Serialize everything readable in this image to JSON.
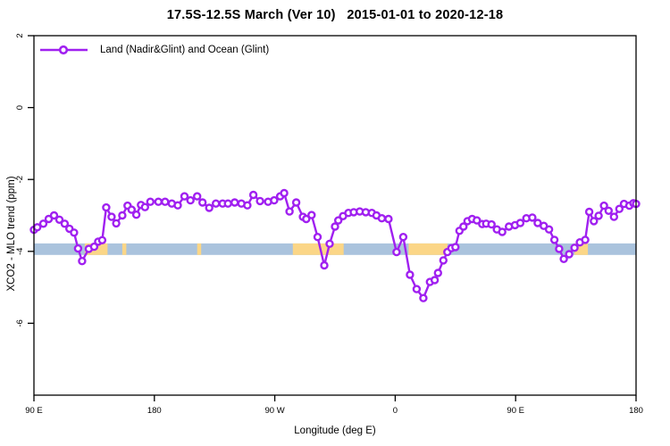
{
  "chart_data": {
    "type": "line",
    "title": "17.5S-12.5S March (Ver 10)   2015-01-01 to 2020-12-18",
    "xlabel": "Longitude (deg E)",
    "ylabel": "XCO2 - MLO trend (ppm)",
    "legend_label": "Land (Nadir&Glint) and Ocean (Glint)",
    "legend_position": "top-left",
    "grid": false,
    "x_axis_note": "longitude plotted eastward from 90E, wrapping past 180 and 0 back to 180 (450 deg span)",
    "xlim": [
      90,
      540
    ],
    "ylim": [
      -8,
      2
    ],
    "x_ticks": [
      {
        "pos": 90,
        "label": "90 E"
      },
      {
        "pos": 180,
        "label": "180"
      },
      {
        "pos": 270,
        "label": "90 W"
      },
      {
        "pos": 360,
        "label": "0"
      },
      {
        "pos": 450,
        "label": "90 E"
      },
      {
        "pos": 540,
        "label": "180"
      }
    ],
    "y_ticks": [
      {
        "pos": 2,
        "label": "2"
      },
      {
        "pos": 0,
        "label": "0"
      },
      {
        "pos": -2,
        "label": "-2"
      },
      {
        "pos": -4,
        "label": "-4"
      },
      {
        "pos": -6,
        "label": "-6"
      }
    ],
    "series_color": "#a020f0",
    "marker": "open-circle",
    "band": {
      "y_top": -3.78,
      "y_bottom": -4.1,
      "ocean_color": "#aac3dd",
      "land_color": "#fbd687",
      "land_segments_x": [
        [
          128,
          145
        ],
        [
          156,
          159
        ],
        [
          212,
          215
        ],
        [
          283.5,
          321.5
        ],
        [
          370,
          399
        ],
        [
          494,
          504
        ]
      ]
    },
    "points": [
      [
        90,
        -3.4
      ],
      [
        92.5,
        -3.33
      ],
      [
        97,
        -3.23
      ],
      [
        101,
        -3.1
      ],
      [
        105,
        -3.0
      ],
      [
        109,
        -3.12
      ],
      [
        113,
        -3.23
      ],
      [
        116.5,
        -3.37
      ],
      [
        120,
        -3.48
      ],
      [
        123,
        -3.92
      ],
      [
        126,
        -4.27
      ],
      [
        131,
        -3.93
      ],
      [
        135,
        -3.87
      ],
      [
        138,
        -3.73
      ],
      [
        141,
        -3.69
      ],
      [
        144,
        -2.78
      ],
      [
        148,
        -3.04
      ],
      [
        151.5,
        -3.22
      ],
      [
        156,
        -3.0
      ],
      [
        160,
        -2.73
      ],
      [
        163,
        -2.84
      ],
      [
        166.5,
        -2.98
      ],
      [
        170,
        -2.71
      ],
      [
        173,
        -2.77
      ],
      [
        177,
        -2.62
      ],
      [
        183,
        -2.62
      ],
      [
        188,
        -2.62
      ],
      [
        193,
        -2.67
      ],
      [
        197.5,
        -2.72
      ],
      [
        202.5,
        -2.47
      ],
      [
        207,
        -2.58
      ],
      [
        212,
        -2.47
      ],
      [
        216,
        -2.64
      ],
      [
        221,
        -2.79
      ],
      [
        226,
        -2.67
      ],
      [
        231,
        -2.67
      ],
      [
        235,
        -2.67
      ],
      [
        240,
        -2.64
      ],
      [
        245,
        -2.67
      ],
      [
        249.5,
        -2.72
      ],
      [
        254,
        -2.43
      ],
      [
        259,
        -2.6
      ],
      [
        265,
        -2.62
      ],
      [
        269.5,
        -2.58
      ],
      [
        274,
        -2.47
      ],
      [
        277,
        -2.38
      ],
      [
        281,
        -2.89
      ],
      [
        286,
        -2.64
      ],
      [
        291,
        -3.04
      ],
      [
        293.5,
        -3.1
      ],
      [
        297.5,
        -2.99
      ],
      [
        302,
        -3.6
      ],
      [
        307,
        -4.39
      ],
      [
        311,
        -3.79
      ],
      [
        315,
        -3.31
      ],
      [
        317.5,
        -3.14
      ],
      [
        321,
        -3.02
      ],
      [
        325,
        -2.93
      ],
      [
        329,
        -2.91
      ],
      [
        333.5,
        -2.89
      ],
      [
        338,
        -2.91
      ],
      [
        342.5,
        -2.93
      ],
      [
        346,
        -3.0
      ],
      [
        350,
        -3.08
      ],
      [
        355,
        -3.1
      ],
      [
        361,
        -4.02
      ],
      [
        366,
        -3.6
      ],
      [
        371,
        -4.65
      ],
      [
        376,
        -5.05
      ],
      [
        381,
        -5.3
      ],
      [
        386,
        -4.85
      ],
      [
        389.5,
        -4.8
      ],
      [
        392,
        -4.6
      ],
      [
        396,
        -4.25
      ],
      [
        399,
        -4.02
      ],
      [
        402,
        -3.91
      ],
      [
        405,
        -3.88
      ],
      [
        408,
        -3.43
      ],
      [
        411,
        -3.31
      ],
      [
        414,
        -3.16
      ],
      [
        417.5,
        -3.1
      ],
      [
        421,
        -3.14
      ],
      [
        425,
        -3.24
      ],
      [
        428,
        -3.23
      ],
      [
        432,
        -3.25
      ],
      [
        436,
        -3.39
      ],
      [
        440,
        -3.46
      ],
      [
        445,
        -3.31
      ],
      [
        449.5,
        -3.27
      ],
      [
        453.5,
        -3.21
      ],
      [
        458,
        -3.08
      ],
      [
        462.5,
        -3.06
      ],
      [
        466.5,
        -3.21
      ],
      [
        471,
        -3.29
      ],
      [
        475,
        -3.39
      ],
      [
        479,
        -3.68
      ],
      [
        482.5,
        -3.93
      ],
      [
        486,
        -4.21
      ],
      [
        490,
        -4.08
      ],
      [
        494,
        -3.9
      ],
      [
        498,
        -3.75
      ],
      [
        502,
        -3.68
      ],
      [
        505,
        -2.9
      ],
      [
        508.5,
        -3.16
      ],
      [
        512,
        -3.01
      ],
      [
        516,
        -2.73
      ],
      [
        519.5,
        -2.87
      ],
      [
        523.5,
        -3.04
      ],
      [
        527.5,
        -2.82
      ],
      [
        531,
        -2.68
      ],
      [
        535,
        -2.73
      ],
      [
        538,
        -2.66
      ],
      [
        540,
        -2.68
      ]
    ]
  }
}
